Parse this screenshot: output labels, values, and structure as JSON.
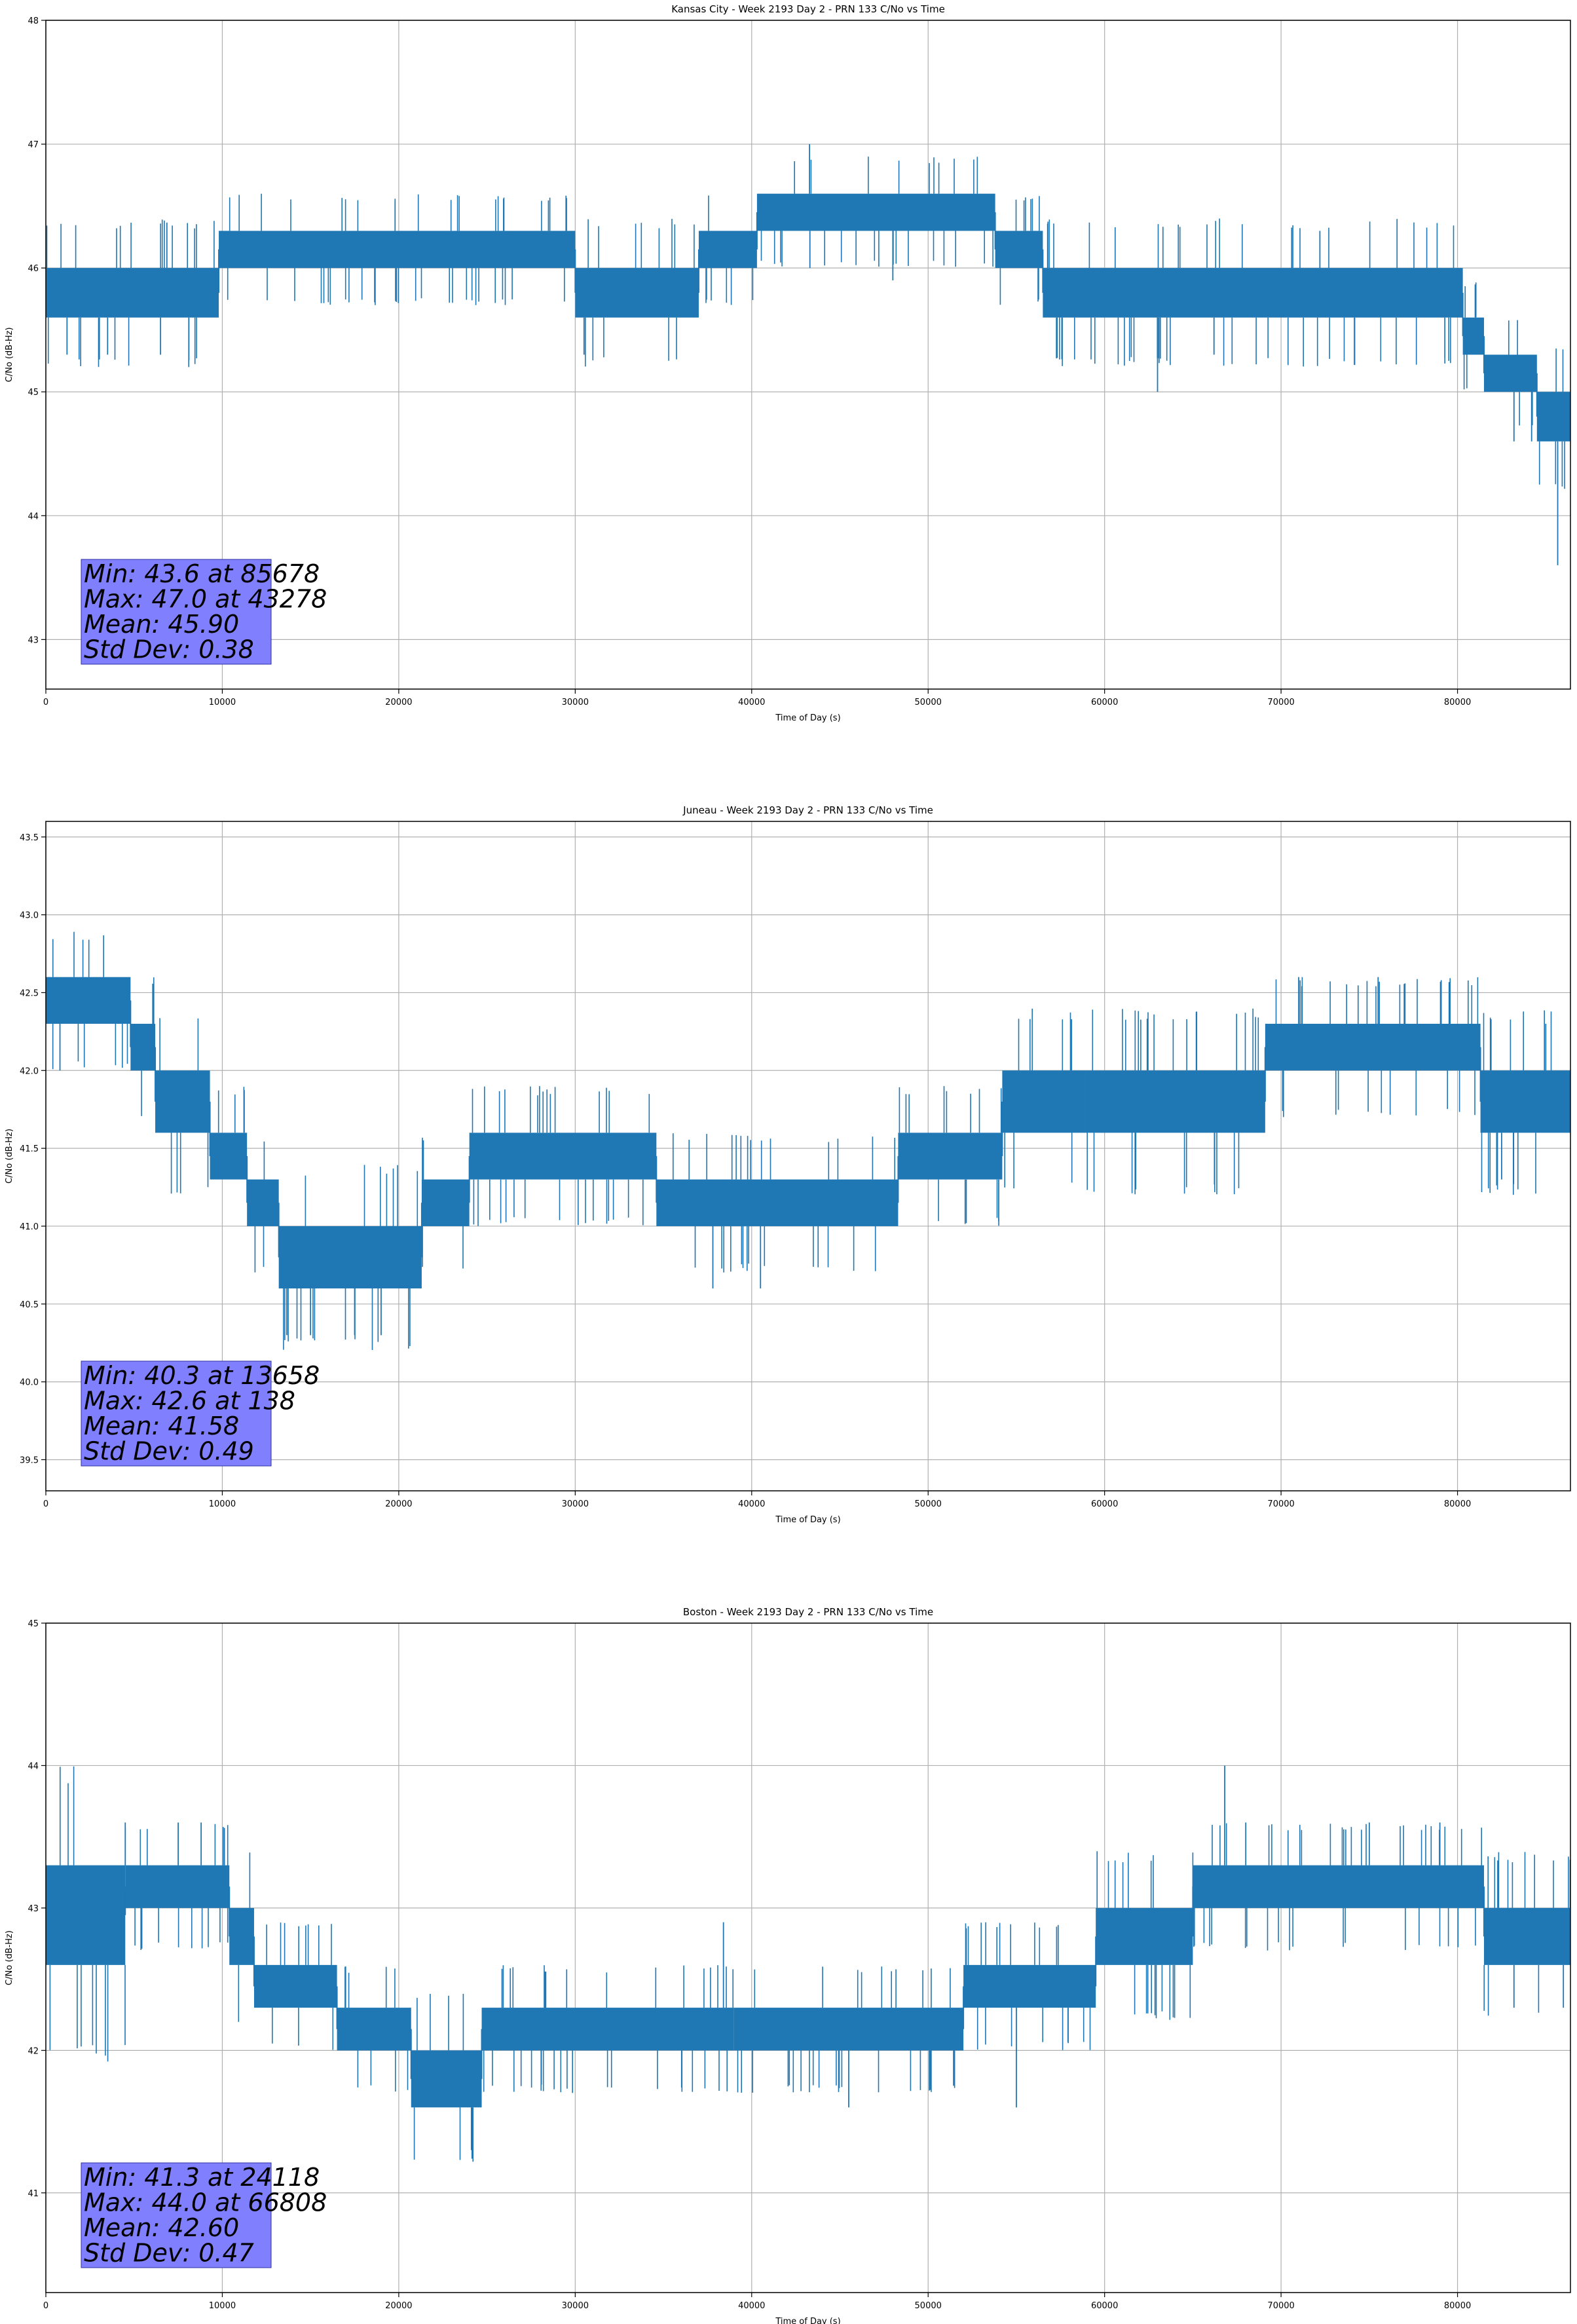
{
  "colors": {
    "series": "#1f77b4",
    "grid": "#b0b0b0",
    "stats_box": "#8080ff",
    "axes": "#000000"
  },
  "chart_data": [
    {
      "type": "line",
      "title": "Kansas City - Week 2193 Day 2 - PRN 133 C/No vs Time",
      "xlabel": "Time of Day (s)",
      "ylabel": "C/No (dB-Hz)",
      "xlim": [
        0,
        86400
      ],
      "ylim": [
        42.6,
        48.0
      ],
      "xticks": [
        0,
        10000,
        20000,
        30000,
        40000,
        50000,
        60000,
        70000,
        80000
      ],
      "yticks": [
        "43",
        "44",
        "45",
        "46",
        "47",
        "48"
      ],
      "grid": true,
      "legend": "none",
      "stats_text": [
        "Min: 43.6 at 85678",
        "Max: 47.0 at 43278",
        "Mean: 45.90",
        "Std Dev: 0.38"
      ],
      "series": [
        {
          "band_segments": [
            {
              "x0": 0,
              "x1": 9800,
              "low": 45.6,
              "high": 46.0
            },
            {
              "x0": 9800,
              "x1": 30000,
              "low": 46.0,
              "high": 46.3
            },
            {
              "x0": 30000,
              "x1": 37000,
              "low": 45.6,
              "high": 46.0
            },
            {
              "x0": 37000,
              "x1": 40300,
              "low": 46.0,
              "high": 46.3
            },
            {
              "x0": 40300,
              "x1": 53800,
              "low": 46.3,
              "high": 46.6
            },
            {
              "x0": 53800,
              "x1": 56500,
              "low": 46.0,
              "high": 46.3
            },
            {
              "x0": 56500,
              "x1": 80300,
              "low": 45.6,
              "high": 46.0
            },
            {
              "x0": 80300,
              "x1": 81500,
              "low": 45.3,
              "high": 45.6
            },
            {
              "x0": 81500,
              "x1": 84500,
              "low": 45.0,
              "high": 45.3
            },
            {
              "x0": 84500,
              "x1": 86400,
              "low": 44.6,
              "high": 45.0
            }
          ],
          "spikes": [
            {
              "x": 43278,
              "y": 47.0
            },
            {
              "x": 85678,
              "y": 43.6
            },
            {
              "x": 63000,
              "y": 45.0
            },
            {
              "x": 72200,
              "y": 46.3
            },
            {
              "x": 1200,
              "y": 45.3
            },
            {
              "x": 3500,
              "y": 45.3
            },
            {
              "x": 6500,
              "y": 45.3
            },
            {
              "x": 30500,
              "y": 45.3
            },
            {
              "x": 48000,
              "y": 45.9
            },
            {
              "x": 43300,
              "y": 46.0
            },
            {
              "x": 66200,
              "y": 45.3
            },
            {
              "x": 83200,
              "y": 44.6
            },
            {
              "x": 84200,
              "y": 44.6
            }
          ]
        }
      ]
    },
    {
      "type": "line",
      "title": "Juneau - Week 2193 Day 2 - PRN 133 C/No vs Time",
      "xlabel": "Time of Day (s)",
      "ylabel": "C/No (dB-Hz)",
      "xlim": [
        0,
        86400
      ],
      "ylim": [
        39.3,
        43.6
      ],
      "xticks": [
        0,
        10000,
        20000,
        30000,
        40000,
        50000,
        60000,
        70000,
        80000
      ],
      "yticks": [
        "39.5",
        "40.0",
        "40.5",
        "41.0",
        "41.5",
        "42.0",
        "42.5",
        "43.0",
        "43.5"
      ],
      "grid": true,
      "legend": "none",
      "stats_text": [
        "Min: 40.3 at 13658",
        "Max: 42.6 at 138",
        "Mean: 41.58",
        "Std Dev: 0.49"
      ],
      "series": [
        {
          "band_segments": [
            {
              "x0": 0,
              "x1": 4800,
              "low": 42.3,
              "high": 42.6
            },
            {
              "x0": 4800,
              "x1": 6200,
              "low": 42.0,
              "high": 42.3
            },
            {
              "x0": 6200,
              "x1": 9300,
              "low": 41.6,
              "high": 42.0
            },
            {
              "x0": 9300,
              "x1": 11400,
              "low": 41.3,
              "high": 41.6
            },
            {
              "x0": 11400,
              "x1": 13200,
              "low": 41.0,
              "high": 41.3
            },
            {
              "x0": 13200,
              "x1": 21300,
              "low": 40.6,
              "high": 41.0
            },
            {
              "x0": 21300,
              "x1": 24000,
              "low": 41.0,
              "high": 41.3
            },
            {
              "x0": 24000,
              "x1": 34600,
              "low": 41.3,
              "high": 41.6
            },
            {
              "x0": 34600,
              "x1": 48300,
              "low": 41.0,
              "high": 41.3
            },
            {
              "x0": 48300,
              "x1": 54200,
              "low": 41.3,
              "high": 41.6
            },
            {
              "x0": 54200,
              "x1": 58900,
              "low": 41.6,
              "high": 42.0
            },
            {
              "x0": 58900,
              "x1": 69100,
              "low": 41.6,
              "high": 42.0
            },
            {
              "x0": 69100,
              "x1": 81300,
              "low": 42.0,
              "high": 42.3
            },
            {
              "x0": 81300,
              "x1": 86400,
              "low": 41.6,
              "high": 42.0
            }
          ],
          "spikes": [
            {
              "x": 138,
              "y": 42.6
            },
            {
              "x": 13658,
              "y": 40.3
            },
            {
              "x": 15000,
              "y": 40.3
            },
            {
              "x": 17500,
              "y": 40.3
            },
            {
              "x": 19000,
              "y": 40.3
            },
            {
              "x": 37800,
              "y": 40.6
            },
            {
              "x": 40500,
              "y": 40.6
            },
            {
              "x": 800,
              "y": 42.0
            },
            {
              "x": 71000,
              "y": 42.6
            },
            {
              "x": 75500,
              "y": 42.6
            },
            {
              "x": 82500,
              "y": 41.3
            },
            {
              "x": 85000,
              "y": 42.3
            },
            {
              "x": 64200,
              "y": 41.6
            }
          ]
        }
      ]
    },
    {
      "type": "line",
      "title": "Boston - Week 2193 Day 2 - PRN 133 C/No vs Time",
      "xlabel": "Time of Day (s)",
      "ylabel": "C/No (dB-Hz)",
      "xlim": [
        0,
        86400
      ],
      "ylim": [
        40.3,
        45.0
      ],
      "xticks": [
        0,
        10000,
        20000,
        30000,
        40000,
        50000,
        60000,
        70000,
        80000
      ],
      "yticks": [
        "41",
        "42",
        "43",
        "44",
        "45"
      ],
      "grid": true,
      "legend": "none",
      "stats_text": [
        "Min: 41.3 at 24118",
        "Max: 44.0 at 66808",
        "Mean: 42.60",
        "Std Dev: 0.47"
      ],
      "series": [
        {
          "band_segments": [
            {
              "x0": 0,
              "x1": 4500,
              "low": 42.6,
              "high": 43.3
            },
            {
              "x0": 4500,
              "x1": 10400,
              "low": 43.0,
              "high": 43.3
            },
            {
              "x0": 10400,
              "x1": 11800,
              "low": 42.6,
              "high": 43.0
            },
            {
              "x0": 11800,
              "x1": 16500,
              "low": 42.3,
              "high": 42.6
            },
            {
              "x0": 16500,
              "x1": 20700,
              "low": 42.0,
              "high": 42.3
            },
            {
              "x0": 20700,
              "x1": 24700,
              "low": 41.6,
              "high": 42.0
            },
            {
              "x0": 24700,
              "x1": 39000,
              "low": 42.0,
              "high": 42.3
            },
            {
              "x0": 39000,
              "x1": 52000,
              "low": 42.0,
              "high": 42.3
            },
            {
              "x0": 52000,
              "x1": 59500,
              "low": 42.3,
              "high": 42.6
            },
            {
              "x0": 59500,
              "x1": 65000,
              "low": 42.6,
              "high": 43.0
            },
            {
              "x0": 65000,
              "x1": 81500,
              "low": 43.0,
              "high": 43.3
            },
            {
              "x0": 81500,
              "x1": 86400,
              "low": 42.6,
              "high": 43.0
            }
          ],
          "spikes": [
            {
              "x": 66808,
              "y": 44.0
            },
            {
              "x": 24118,
              "y": 41.3
            },
            {
              "x": 4500,
              "y": 43.6
            },
            {
              "x": 7500,
              "y": 43.6
            },
            {
              "x": 8800,
              "y": 43.6
            },
            {
              "x": 38400,
              "y": 42.9
            },
            {
              "x": 45500,
              "y": 41.6
            },
            {
              "x": 55000,
              "y": 41.6
            },
            {
              "x": 68000,
              "y": 43.6
            },
            {
              "x": 75000,
              "y": 43.6
            },
            {
              "x": 79000,
              "y": 43.6
            },
            {
              "x": 83200,
              "y": 42.3
            },
            {
              "x": 86000,
              "y": 42.3
            }
          ]
        }
      ]
    }
  ]
}
